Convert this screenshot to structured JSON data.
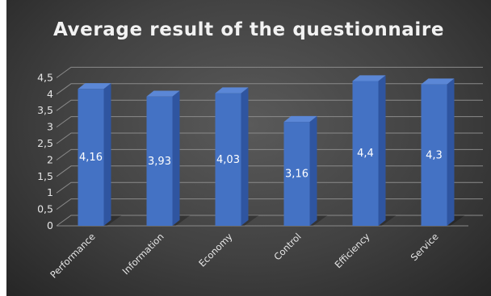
{
  "chart_data": {
    "type": "bar",
    "title": "Average result of the questionnaire",
    "categories": [
      "Performance",
      "Information",
      "Economy",
      "Control",
      "Efficiency",
      "Service"
    ],
    "values": [
      4.16,
      3.93,
      4.03,
      3.16,
      4.4,
      4.3
    ],
    "data_labels": [
      "4,16",
      "3,93",
      "4,03",
      "3,16",
      "4,4",
      "4,3"
    ],
    "y_ticks": [
      0,
      0.5,
      1,
      1.5,
      2,
      2.5,
      3,
      3.5,
      4,
      4.5
    ],
    "y_tick_labels": [
      "0",
      "0,5",
      "1",
      "1,5",
      "2",
      "2,5",
      "3",
      "3,5",
      "4",
      "4,5"
    ],
    "ylim": [
      0,
      4.5
    ],
    "xlabel": "",
    "ylabel": "",
    "grid": true,
    "legend": "none",
    "style": "3d-clustered-column"
  },
  "colors": {
    "bar_front": "#4472c4",
    "bar_side": "#2f55a0",
    "bar_top": "#5b87d6",
    "grid": "#8a8a8a",
    "text": "#e6e6e6"
  }
}
